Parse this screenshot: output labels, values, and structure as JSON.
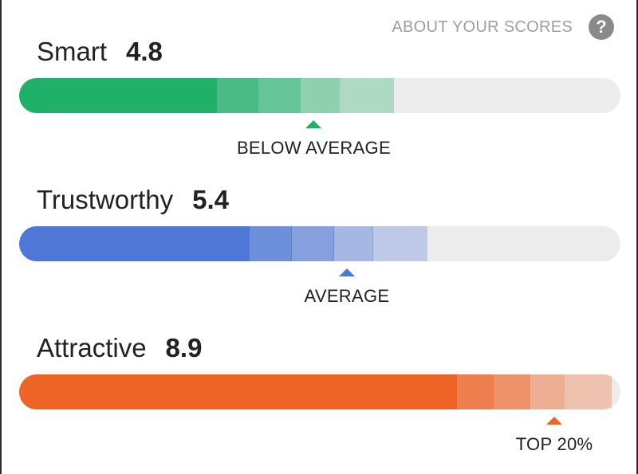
{
  "header": {
    "about_label": "ABOUT YOUR SCORES",
    "help_icon": "help-circle-icon",
    "help_glyph": "?"
  },
  "scores": [
    {
      "name": "Smart",
      "value": "4.8",
      "rating": "BELOW AVERAGE",
      "color": "#1fb06a",
      "fill_fraction": 0.49,
      "marker_fraction": 0.49
    },
    {
      "name": "Trustworthy",
      "value": "5.4",
      "rating": "AVERAGE",
      "color": "#4f78d6",
      "fill_fraction": 0.545,
      "marker_fraction": 0.545
    },
    {
      "name": "Attractive",
      "value": "8.9",
      "rating": "TOP 20%",
      "color": "#ee6326",
      "fill_fraction": 0.89,
      "marker_fraction": 0.89
    }
  ]
}
